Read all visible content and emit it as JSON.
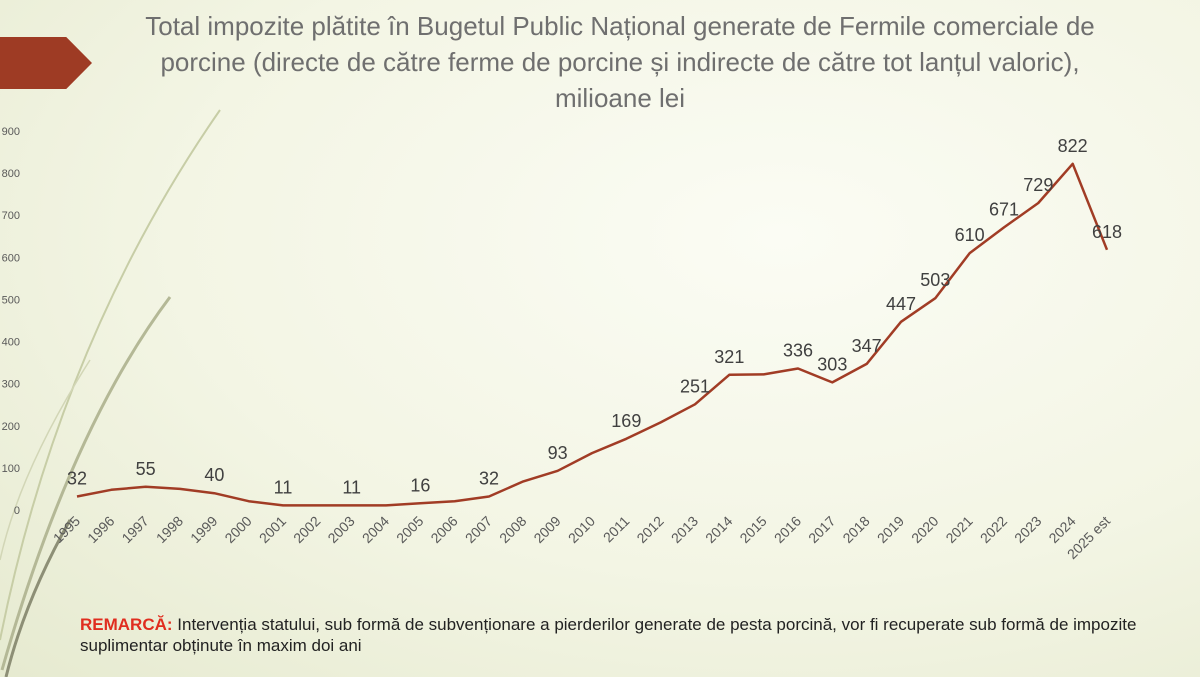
{
  "slide": {
    "accent_color": "#9e3b24",
    "line_color": "#a13c25"
  },
  "chart_data": {
    "type": "line",
    "title": "Total impozite plătite în Bugetul Public Național generate de Fermile comerciale de porcine (directe de către ferme de porcine și indirecte de către tot lanțul valoric), milioane lei",
    "categories": [
      "1995",
      "1996",
      "1997",
      "1998",
      "1999",
      "2000",
      "2001",
      "2002",
      "2003",
      "2004",
      "2005",
      "2006",
      "2007",
      "2008",
      "2009",
      "2010",
      "2011",
      "2012",
      "2013",
      "2014",
      "2015",
      "2016",
      "2017",
      "2018",
      "2019",
      "2020",
      "2021",
      "2022",
      "2023",
      "2024",
      "2025 est"
    ],
    "series": [
      {
        "name": "Total impozite",
        "values": [
          32,
          48,
          55,
          50,
          40,
          21,
          11,
          11,
          11,
          11,
          16,
          21,
          32,
          68,
          93,
          135,
          169,
          208,
          251,
          321,
          322,
          336,
          303,
          347,
          447,
          503,
          610,
          671,
          729,
          822,
          618
        ]
      }
    ],
    "labeled_indices": [
      0,
      2,
      4,
      6,
      8,
      10,
      12,
      14,
      16,
      18,
      19,
      21,
      22,
      23,
      24,
      25,
      26,
      27,
      28,
      29,
      30
    ],
    "data_labels": [
      "32",
      "55",
      "40",
      "11",
      "11",
      "16",
      "32",
      "93",
      "169",
      "251",
      "321",
      "336",
      "303",
      "347",
      "447",
      "503",
      "610",
      "671",
      "729",
      "822",
      "618"
    ],
    "y_ticks": [
      "0",
      "100",
      "200",
      "300",
      "400",
      "500",
      "600",
      "700",
      "800",
      "900"
    ],
    "ylim": [
      0,
      900
    ],
    "xlabel": "",
    "ylabel": "",
    "grid": false,
    "legend": "none"
  },
  "remark": {
    "label": "REMARCĂ:",
    "text": " Intervenția statului, sub formă de subvenționare a pierderilor generate de pesta porcină, vor fi recuperate sub formă de impozite suplimentar obținute în maxim doi ani"
  }
}
